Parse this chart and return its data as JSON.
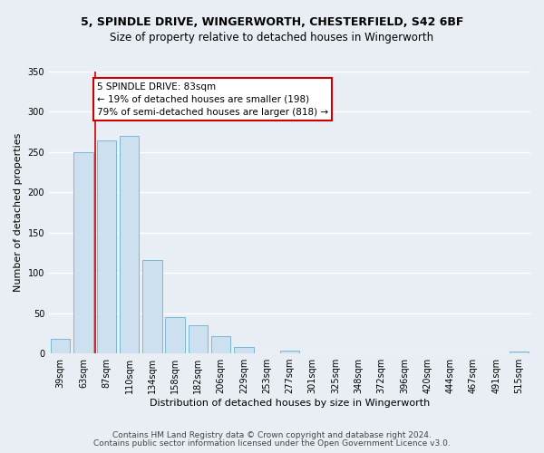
{
  "title1": "5, SPINDLE DRIVE, WINGERWORTH, CHESTERFIELD, S42 6BF",
  "title2": "Size of property relative to detached houses in Wingerworth",
  "xlabel": "Distribution of detached houses by size in Wingerworth",
  "ylabel": "Number of detached properties",
  "bar_labels": [
    "39sqm",
    "63sqm",
    "87sqm",
    "110sqm",
    "134sqm",
    "158sqm",
    "182sqm",
    "206sqm",
    "229sqm",
    "253sqm",
    "277sqm",
    "301sqm",
    "325sqm",
    "348sqm",
    "372sqm",
    "396sqm",
    "420sqm",
    "444sqm",
    "467sqm",
    "491sqm",
    "515sqm"
  ],
  "bar_heights": [
    18,
    250,
    265,
    270,
    116,
    45,
    35,
    21,
    8,
    0,
    4,
    0,
    0,
    0,
    0,
    0,
    0,
    0,
    0,
    0,
    2
  ],
  "bar_color": "#cce0ef",
  "bar_edge_color": "#7ab8d9",
  "annotation_text": "5 SPINDLE DRIVE: 83sqm\n← 19% of detached houses are smaller (198)\n79% of semi-detached houses are larger (818) →",
  "annotation_box_color": "#ffffff",
  "annotation_box_edge": "#cc0000",
  "ref_line_color": "#cc0000",
  "ylim": [
    0,
    350
  ],
  "yticks": [
    0,
    50,
    100,
    150,
    200,
    250,
    300,
    350
  ],
  "footer1": "Contains HM Land Registry data © Crown copyright and database right 2024.",
  "footer2": "Contains public sector information licensed under the Open Government Licence v3.0.",
  "bg_color": "#e8eef4",
  "plot_bg_color": "#e8eef4",
  "grid_color": "#ffffff",
  "title_fontsize": 9,
  "subtitle_fontsize": 8.5,
  "axis_label_fontsize": 8,
  "tick_fontsize": 7,
  "annot_fontsize": 7.5,
  "footer_fontsize": 6.5
}
